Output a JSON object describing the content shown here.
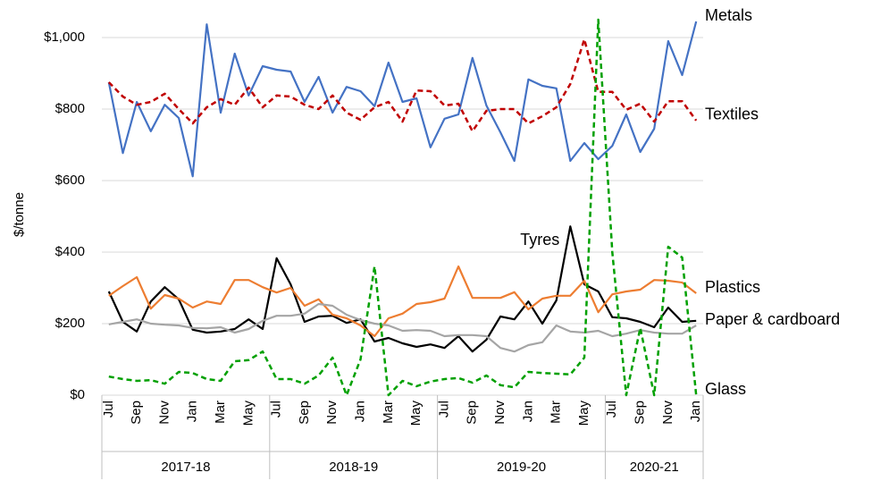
{
  "chart_data": {
    "type": "line",
    "y_label": "$/tonne",
    "ylim": [
      0,
      1050
    ],
    "yticks": [
      {
        "value": 0,
        "label": "$0"
      },
      {
        "value": 200,
        "label": "$200"
      },
      {
        "value": 400,
        "label": "$400"
      },
      {
        "value": 600,
        "label": "$600"
      },
      {
        "value": 800,
        "label": "$800"
      },
      {
        "value": 1000,
        "label": "$1,000"
      }
    ],
    "grid": true,
    "categories": [
      "Jul",
      null,
      "Sep",
      null,
      "Nov",
      null,
      "Jan",
      null,
      "Mar",
      null,
      "May",
      null,
      "Jul",
      null,
      "Sep",
      null,
      "Nov",
      null,
      "Jan",
      null,
      "Mar",
      null,
      "May",
      null,
      "Jul",
      null,
      "Sep",
      null,
      "Nov",
      null,
      "Jan",
      null,
      "Mar",
      null,
      "May",
      null,
      "Jul",
      null,
      "Sep",
      null,
      "Nov",
      null,
      "Jan"
    ],
    "groups": [
      {
        "label": "2017-18",
        "size": 12
      },
      {
        "label": "2018-19",
        "size": 12
      },
      {
        "label": "2019-20",
        "size": 12
      },
      {
        "label": "2020-21",
        "size": 7
      }
    ],
    "series": [
      {
        "name": "Metals",
        "color": "#4472c4",
        "dashed": false,
        "values": [
          875,
          677,
          820,
          738,
          812,
          775,
          612,
          1037,
          790,
          955,
          838,
          920,
          910,
          905,
          820,
          890,
          790,
          862,
          850,
          808,
          930,
          820,
          830,
          693,
          773,
          785,
          943,
          810,
          735,
          655,
          883,
          865,
          858,
          655,
          705,
          660,
          697,
          785,
          680,
          745,
          990,
          895,
          1045
        ]
      },
      {
        "name": "Textiles",
        "color": "#c00000",
        "dashed": true,
        "values": [
          875,
          835,
          812,
          820,
          843,
          800,
          760,
          805,
          828,
          812,
          860,
          805,
          838,
          835,
          812,
          800,
          838,
          790,
          770,
          805,
          820,
          765,
          852,
          850,
          810,
          815,
          738,
          795,
          800,
          800,
          760,
          780,
          805,
          870,
          995,
          848,
          848,
          798,
          815,
          765,
          822,
          822,
          768
        ]
      },
      {
        "name": "Tyres",
        "color": "#000000",
        "dashed": false,
        "values": [
          290,
          205,
          178,
          262,
          302,
          268,
          183,
          175,
          178,
          185,
          212,
          185,
          383,
          310,
          205,
          220,
          222,
          202,
          212,
          150,
          160,
          145,
          135,
          142,
          132,
          165,
          122,
          155,
          220,
          212,
          262,
          200,
          265,
          472,
          310,
          290,
          218,
          215,
          205,
          190,
          245,
          205,
          208
        ]
      },
      {
        "name": "Plastics",
        "color": "#ed7d31",
        "dashed": false,
        "values": [
          278,
          305,
          330,
          242,
          280,
          270,
          245,
          262,
          255,
          322,
          322,
          302,
          287,
          300,
          250,
          268,
          225,
          215,
          195,
          165,
          215,
          228,
          255,
          260,
          270,
          360,
          272,
          272,
          272,
          288,
          240,
          270,
          278,
          278,
          320,
          232,
          282,
          290,
          295,
          322,
          320,
          315,
          285
        ]
      },
      {
        "name": "Paper & cardboard",
        "color": "#a5a5a5",
        "dashed": false,
        "values": [
          198,
          205,
          212,
          200,
          197,
          195,
          188,
          187,
          190,
          175,
          185,
          208,
          222,
          222,
          228,
          255,
          250,
          225,
          210,
          200,
          195,
          180,
          182,
          180,
          165,
          168,
          168,
          165,
          132,
          122,
          140,
          148,
          195,
          178,
          175,
          180,
          165,
          172,
          182,
          175,
          172,
          172,
          195
        ]
      },
      {
        "name": "Glass",
        "color": "#00a000",
        "dashed": true,
        "values": [
          52,
          45,
          40,
          42,
          32,
          65,
          62,
          45,
          40,
          95,
          98,
          122,
          45,
          45,
          32,
          55,
          105,
          0,
          100,
          360,
          0,
          40,
          25,
          38,
          45,
          48,
          35,
          55,
          28,
          22,
          65,
          62,
          60,
          58,
          105,
          1050,
          400,
          0,
          188,
          0,
          415,
          385,
          0
        ]
      }
    ]
  }
}
